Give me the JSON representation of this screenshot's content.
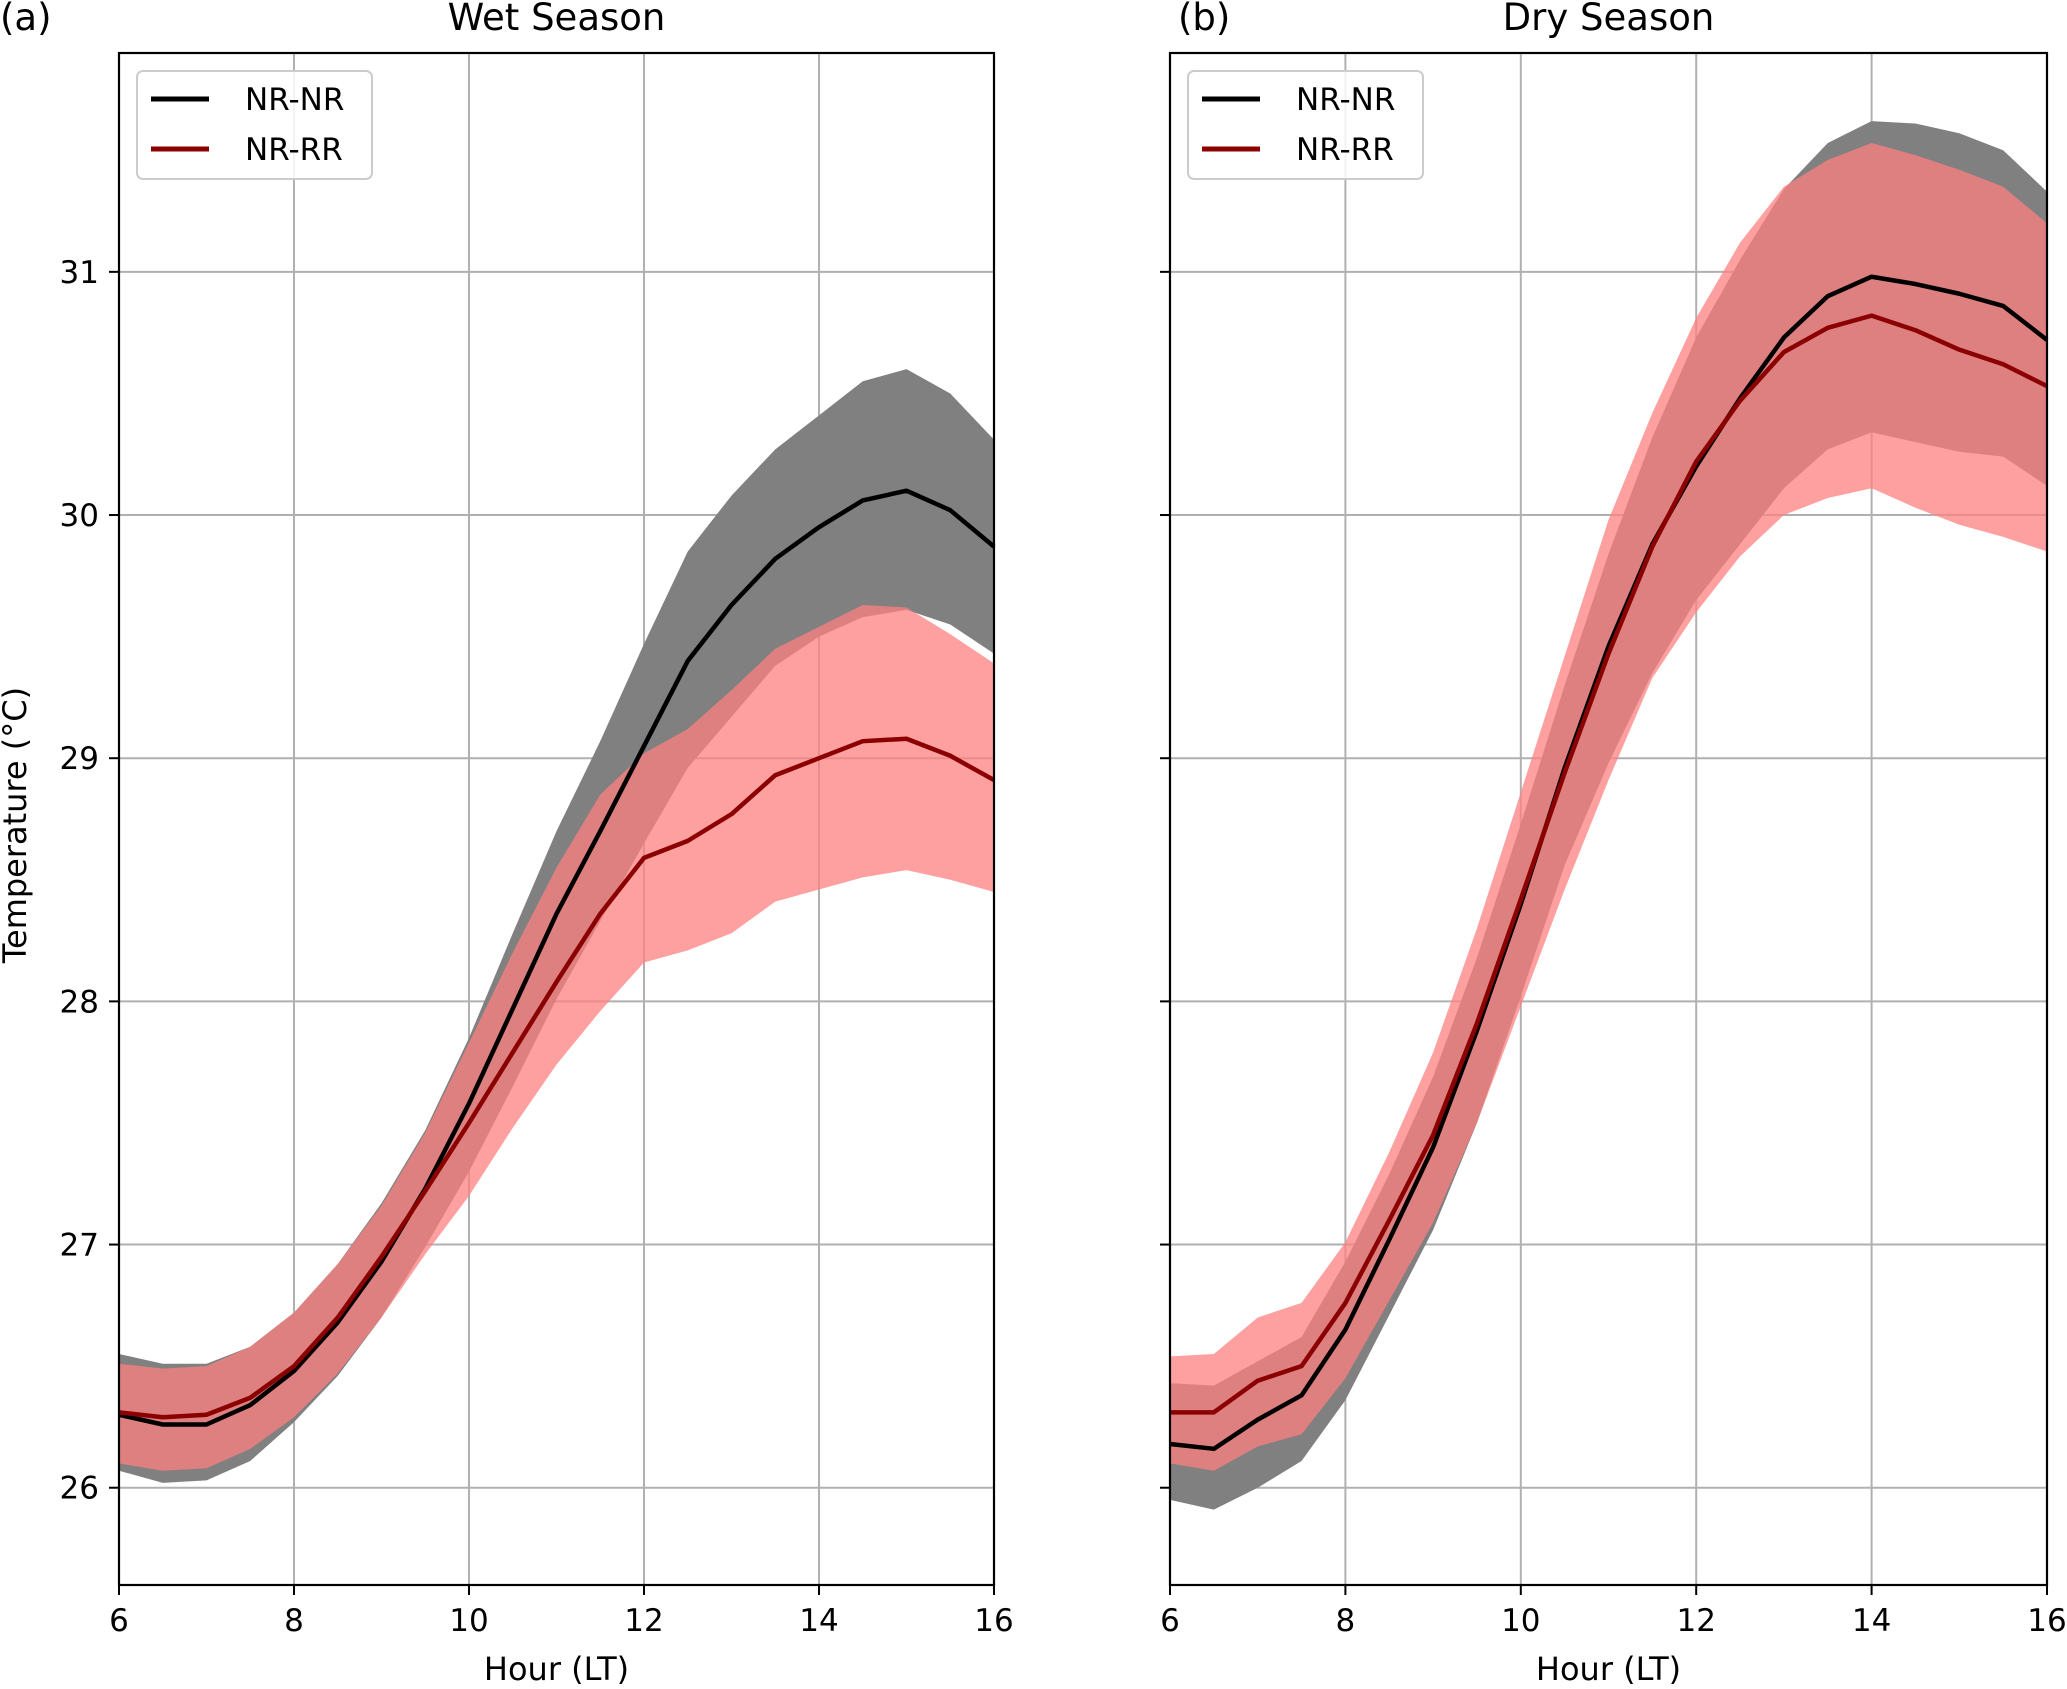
{
  "figure": {
    "shared_ylabel": "Temperature (°C)"
  },
  "chart_data": [
    {
      "type": "line",
      "panel_label": "(a)",
      "title": "Wet Season",
      "xlabel": "Hour (LT)",
      "ylabel": "Temperature (°C)",
      "xlim": [
        6,
        16
      ],
      "ylim": [
        25.6,
        31.9
      ],
      "xticks": [
        6,
        8,
        10,
        12,
        14,
        16
      ],
      "yticks": [
        26,
        27,
        28,
        29,
        30,
        31
      ],
      "grid": true,
      "legend_position": "top-left",
      "x": [
        6,
        6.5,
        7,
        7.5,
        8,
        8.5,
        9,
        9.5,
        10,
        10.5,
        11,
        11.5,
        12,
        12.5,
        13,
        13.5,
        14,
        14.5,
        15,
        15.5,
        16
      ],
      "series": [
        {
          "name": "NR-NR",
          "color": "#000000",
          "band_color": "#808080",
          "values": [
            26.3,
            26.26,
            26.26,
            26.34,
            26.48,
            26.68,
            26.93,
            27.23,
            27.58,
            27.97,
            28.36,
            28.7,
            29.05,
            29.4,
            29.63,
            29.82,
            29.95,
            30.06,
            30.1,
            30.02,
            29.87
          ],
          "upper": [
            26.55,
            26.51,
            26.51,
            26.58,
            26.72,
            26.92,
            27.17,
            27.47,
            27.85,
            28.28,
            28.7,
            29.07,
            29.47,
            29.85,
            30.08,
            30.27,
            30.41,
            30.55,
            30.6,
            30.5,
            30.31
          ],
          "lower": [
            26.07,
            26.02,
            26.03,
            26.11,
            26.27,
            26.46,
            26.7,
            26.99,
            27.3,
            27.65,
            28.01,
            28.33,
            28.65,
            28.96,
            29.17,
            29.38,
            29.5,
            29.58,
            29.61,
            29.55,
            29.43
          ]
        },
        {
          "name": "NR-RR",
          "color": "#8b0000",
          "band_color": "#ff8080",
          "values": [
            26.31,
            26.29,
            26.3,
            26.37,
            26.5,
            26.7,
            26.95,
            27.22,
            27.5,
            27.79,
            28.08,
            28.36,
            28.59,
            28.66,
            28.77,
            28.93,
            29.0,
            29.07,
            29.08,
            29.01,
            28.91
          ],
          "upper": [
            26.51,
            26.49,
            26.5,
            26.58,
            26.72,
            26.92,
            27.16,
            27.46,
            27.83,
            28.2,
            28.55,
            28.85,
            29.02,
            29.12,
            29.28,
            29.45,
            29.54,
            29.63,
            29.62,
            29.51,
            29.39
          ],
          "lower": [
            26.1,
            26.07,
            26.08,
            26.16,
            26.29,
            26.47,
            26.7,
            26.96,
            27.2,
            27.48,
            27.74,
            27.96,
            28.16,
            28.21,
            28.28,
            28.41,
            28.46,
            28.51,
            28.54,
            28.5,
            28.45
          ]
        }
      ]
    },
    {
      "type": "line",
      "panel_label": "(b)",
      "title": "Dry Season",
      "xlabel": "Hour (LT)",
      "ylabel": "",
      "xlim": [
        6,
        16
      ],
      "ylim": [
        25.6,
        31.9
      ],
      "xticks": [
        6,
        8,
        10,
        12,
        14,
        16
      ],
      "yticks": [
        26,
        27,
        28,
        29,
        30,
        31
      ],
      "grid": true,
      "legend_position": "top-left",
      "x": [
        6,
        6.5,
        7,
        7.5,
        8,
        8.5,
        9,
        9.5,
        10,
        10.5,
        11,
        11.5,
        12,
        12.5,
        13,
        13.5,
        14,
        14.5,
        15,
        15.5,
        16
      ],
      "series": [
        {
          "name": "NR-NR",
          "color": "#000000",
          "band_color": "#808080",
          "values": [
            26.18,
            26.16,
            26.28,
            26.38,
            26.65,
            27.02,
            27.4,
            27.88,
            28.4,
            28.96,
            29.46,
            29.88,
            30.2,
            30.48,
            30.73,
            30.9,
            30.98,
            30.95,
            30.91,
            30.86,
            30.72
          ],
          "upper": [
            26.43,
            26.42,
            26.52,
            26.62,
            26.93,
            27.29,
            27.69,
            28.18,
            28.73,
            29.3,
            29.84,
            30.32,
            30.73,
            31.05,
            31.34,
            31.53,
            31.62,
            31.61,
            31.57,
            31.5,
            31.33
          ],
          "lower": [
            25.95,
            25.91,
            26.0,
            26.11,
            26.36,
            26.71,
            27.06,
            27.5,
            28.02,
            28.56,
            28.98,
            29.35,
            29.65,
            29.88,
            30.11,
            30.27,
            30.34,
            30.3,
            30.26,
            30.24,
            30.12
          ]
        },
        {
          "name": "NR-RR",
          "color": "#8b0000",
          "band_color": "#ff8080",
          "values": [
            26.31,
            26.31,
            26.44,
            26.5,
            26.76,
            27.1,
            27.45,
            27.91,
            28.42,
            28.94,
            29.43,
            29.87,
            30.22,
            30.47,
            30.67,
            30.77,
            30.82,
            30.76,
            30.68,
            30.62,
            30.53
          ],
          "upper": [
            26.54,
            26.55,
            26.7,
            26.76,
            27.01,
            27.38,
            27.79,
            28.3,
            28.86,
            29.42,
            29.98,
            30.42,
            30.81,
            31.12,
            31.35,
            31.46,
            31.53,
            31.48,
            31.42,
            31.35,
            31.2
          ],
          "lower": [
            26.1,
            26.07,
            26.17,
            26.22,
            26.45,
            26.77,
            27.09,
            27.5,
            27.98,
            28.46,
            28.91,
            29.33,
            29.6,
            29.83,
            30.0,
            30.07,
            30.11,
            30.03,
            29.96,
            29.91,
            29.85
          ]
        }
      ]
    }
  ]
}
